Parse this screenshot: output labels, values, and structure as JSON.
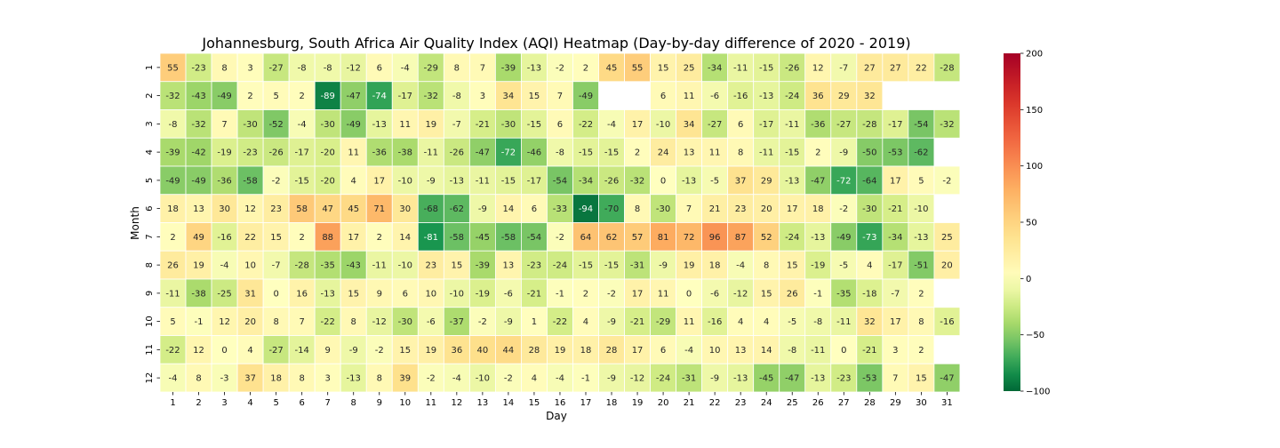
{
  "chart_data": {
    "type": "heatmap",
    "title": "Johannesburg, South Africa Air Quality Index (AQI) Heatmap (Day-by-day difference of 2020 - 2019)",
    "xlabel": "Day",
    "ylabel": "Month",
    "x_categories": [
      "1",
      "2",
      "3",
      "4",
      "5",
      "6",
      "7",
      "8",
      "9",
      "10",
      "11",
      "12",
      "13",
      "14",
      "15",
      "16",
      "17",
      "18",
      "19",
      "20",
      "21",
      "22",
      "23",
      "24",
      "25",
      "26",
      "27",
      "28",
      "29",
      "30",
      "31"
    ],
    "y_categories": [
      "1",
      "2",
      "3",
      "4",
      "5",
      "6",
      "7",
      "8",
      "9",
      "10",
      "11",
      "12"
    ],
    "values": [
      [
        55,
        -23,
        8,
        3,
        -27,
        -8,
        -8,
        -12,
        6,
        -4,
        -29,
        8,
        7,
        -39,
        -13,
        -2,
        2,
        45,
        55,
        15,
        25,
        -34,
        -11,
        -15,
        -26,
        12,
        -7,
        27,
        27,
        22,
        -28
      ],
      [
        -32,
        -43,
        -49,
        2,
        5,
        2,
        -89,
        -47,
        -74,
        -17,
        -32,
        -8,
        3,
        34,
        15,
        7,
        -49,
        null,
        null,
        6,
        11,
        -6,
        -16,
        -13,
        -24,
        36,
        29,
        32,
        null,
        null,
        null
      ],
      [
        -8,
        -32,
        7,
        -30,
        -52,
        -4,
        -30,
        -49,
        -13,
        11,
        19,
        -7,
        -21,
        -30,
        -15,
        6,
        -22,
        -4,
        17,
        -10,
        34,
        -27,
        6,
        -17,
        -11,
        -36,
        -27,
        -28,
        -17,
        -54,
        -32
      ],
      [
        -39,
        -42,
        -19,
        -23,
        -26,
        -17,
        -20,
        11,
        -36,
        -38,
        -11,
        -26,
        -47,
        -72,
        -46,
        -8,
        -15,
        -15,
        2,
        24,
        13,
        11,
        8,
        -11,
        -15,
        2,
        -9,
        -50,
        -53,
        -62,
        null
      ],
      [
        -49,
        -49,
        -36,
        -58,
        -2,
        -15,
        -20,
        4,
        17,
        -10,
        -9,
        -13,
        -11,
        -15,
        -17,
        -54,
        -34,
        -26,
        -32,
        0,
        -13,
        -5,
        37,
        29,
        -13,
        -47,
        -72,
        -64,
        17,
        5,
        -2
      ],
      [
        18,
        13,
        30,
        12,
        23,
        58,
        47,
        45,
        71,
        30,
        -68,
        -62,
        -9,
        14,
        6,
        -33,
        -94,
        -70,
        8,
        -30,
        7,
        21,
        23,
        20,
        17,
        18,
        -2,
        -30,
        -21,
        -10,
        null
      ],
      [
        2,
        49,
        -16,
        22,
        15,
        2,
        88,
        17,
        2,
        14,
        -81,
        -58,
        -45,
        -58,
        -54,
        -2,
        64,
        62,
        57,
        81,
        72,
        96,
        87,
        52,
        -24,
        -13,
        -49,
        -73,
        -34,
        -13,
        25
      ],
      [
        26,
        19,
        -4,
        10,
        -7,
        -28,
        -35,
        -43,
        -11,
        -10,
        23,
        15,
        -39,
        13,
        -23,
        -24,
        -15,
        -15,
        -31,
        -9,
        19,
        18,
        -4,
        8,
        15,
        -19,
        -5,
        4,
        -17,
        -51,
        20
      ],
      [
        -11,
        -38,
        -25,
        31,
        0,
        16,
        -13,
        15,
        9,
        6,
        10,
        -10,
        -19,
        -6,
        -21,
        -1,
        2,
        -2,
        17,
        11,
        0,
        -6,
        -12,
        15,
        26,
        -1,
        -35,
        -18,
        -7,
        2,
        null
      ],
      [
        5,
        -1,
        12,
        20,
        8,
        7,
        -22,
        8,
        -12,
        -30,
        -6,
        -37,
        -2,
        -9,
        1,
        -22,
        4,
        -9,
        -21,
        -29,
        11,
        -16,
        4,
        4,
        -5,
        -8,
        -11,
        32,
        17,
        8,
        -16
      ],
      [
        -22,
        12,
        0,
        4,
        -27,
        -14,
        9,
        -9,
        -2,
        15,
        19,
        36,
        40,
        44,
        28,
        19,
        18,
        28,
        17,
        6,
        -4,
        10,
        13,
        14,
        -8,
        -11,
        0,
        -21,
        3,
        2,
        null
      ],
      [
        -4,
        8,
        -3,
        37,
        18,
        8,
        3,
        -13,
        8,
        39,
        -2,
        -4,
        -10,
        -2,
        4,
        -4,
        -1,
        -9,
        -12,
        -24,
        -31,
        -9,
        -13,
        -45,
        -47,
        -13,
        -23,
        -53,
        7,
        15,
        -47
      ]
    ],
    "colorbar": {
      "min": -100,
      "max": 200,
      "center": 0,
      "ticks": [
        -100,
        -50,
        0,
        50,
        100,
        150,
        200
      ],
      "tick_labels": [
        "−100",
        "−50",
        "0",
        "50",
        "100",
        "150",
        "200"
      ],
      "colormap": "RdYlGn_r"
    }
  }
}
